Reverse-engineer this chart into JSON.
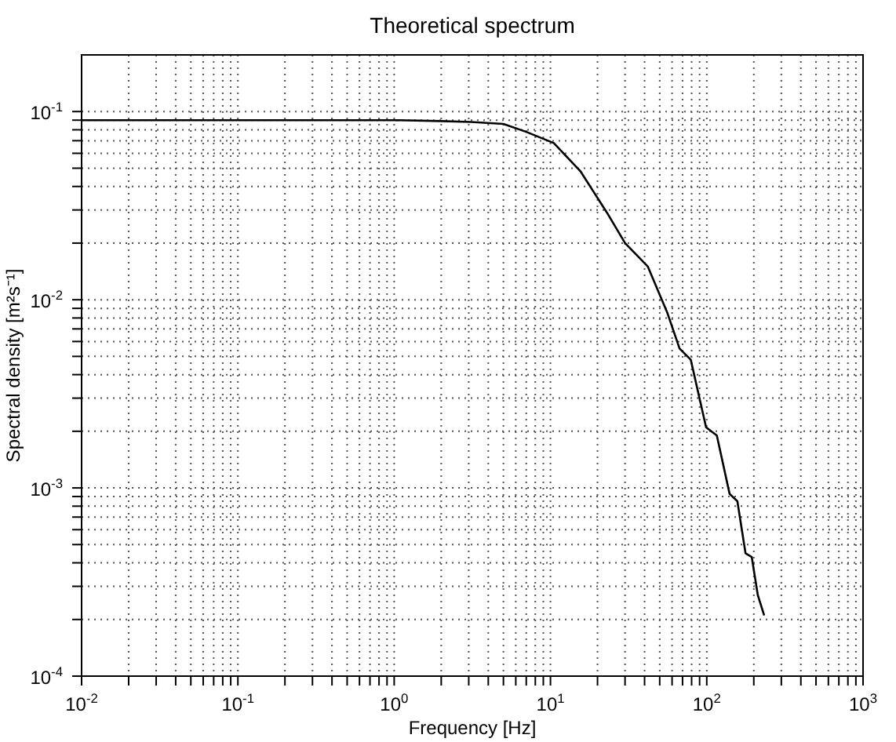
{
  "chart_data": {
    "type": "line",
    "title": "Theoretical spectrum",
    "xlabel": "Frequency  [Hz]",
    "ylabel": "Spectral density  [m²s⁻¹]",
    "log": "xy",
    "grid": true,
    "marker": "none",
    "line_style": "solid",
    "xlim": [
      0.01,
      1000
    ],
    "ylim": [
      0.0001,
      0.2
    ],
    "xticks": [
      {
        "value": 0.01,
        "label": "10$^{-2}$"
      },
      {
        "value": 0.02,
        "label": null
      },
      {
        "value": 0.03,
        "label": null
      },
      {
        "value": 0.04,
        "label": null
      },
      {
        "value": 0.05,
        "label": null
      },
      {
        "value": 0.06,
        "label": null
      },
      {
        "value": 0.07,
        "label": null
      },
      {
        "value": 0.08,
        "label": null
      },
      {
        "value": 0.09,
        "label": null
      },
      {
        "value": 0.1,
        "label": "10$^{-1}$"
      },
      {
        "value": 0.2,
        "label": null
      },
      {
        "value": 0.3,
        "label": null
      },
      {
        "value": 0.4,
        "label": null
      },
      {
        "value": 0.5,
        "label": null
      },
      {
        "value": 0.6,
        "label": null
      },
      {
        "value": 0.7,
        "label": null
      },
      {
        "value": 0.8,
        "label": null
      },
      {
        "value": 0.9,
        "label": null
      },
      {
        "value": 1,
        "label": "10$^{0}$"
      },
      {
        "value": 2,
        "label": null
      },
      {
        "value": 3,
        "label": null
      },
      {
        "value": 4,
        "label": null
      },
      {
        "value": 5,
        "label": null
      },
      {
        "value": 6,
        "label": null
      },
      {
        "value": 7,
        "label": null
      },
      {
        "value": 8,
        "label": null
      },
      {
        "value": 9,
        "label": null
      },
      {
        "value": 10,
        "label": "10$^{1}$"
      },
      {
        "value": 20,
        "label": null
      },
      {
        "value": 30,
        "label": null
      },
      {
        "value": 40,
        "label": null
      },
      {
        "value": 50,
        "label": null
      },
      {
        "value": 60,
        "label": null
      },
      {
        "value": 70,
        "label": null
      },
      {
        "value": 80,
        "label": null
      },
      {
        "value": 90,
        "label": null
      },
      {
        "value": 100,
        "label": "10$^{2}$"
      },
      {
        "value": 200,
        "label": null
      },
      {
        "value": 300,
        "label": null
      },
      {
        "value": 400,
        "label": null
      },
      {
        "value": 500,
        "label": null
      },
      {
        "value": 600,
        "label": null
      },
      {
        "value": 700,
        "label": null
      },
      {
        "value": 800,
        "label": null
      },
      {
        "value": 900,
        "label": null
      },
      {
        "value": 1000,
        "label": "10$^{3}$"
      }
    ],
    "yticks": [
      {
        "value": 0.0001,
        "label": "10$^{-4}$"
      },
      {
        "value": 0.0002,
        "label": null
      },
      {
        "value": 0.0003,
        "label": null
      },
      {
        "value": 0.0004,
        "label": null
      },
      {
        "value": 0.0005,
        "label": null
      },
      {
        "value": 0.0006,
        "label": null
      },
      {
        "value": 0.0007,
        "label": null
      },
      {
        "value": 0.0008,
        "label": null
      },
      {
        "value": 0.0009,
        "label": null
      },
      {
        "value": 0.001,
        "label": "10$^{-3}$"
      },
      {
        "value": 0.002,
        "label": null
      },
      {
        "value": 0.003,
        "label": null
      },
      {
        "value": 0.004,
        "label": null
      },
      {
        "value": 0.005,
        "label": null
      },
      {
        "value": 0.006,
        "label": null
      },
      {
        "value": 0.007,
        "label": null
      },
      {
        "value": 0.008,
        "label": null
      },
      {
        "value": 0.009,
        "label": null
      },
      {
        "value": 0.01,
        "label": "10$^{-2}$"
      },
      {
        "value": 0.02,
        "label": null
      },
      {
        "value": 0.03,
        "label": null
      },
      {
        "value": 0.04,
        "label": null
      },
      {
        "value": 0.05,
        "label": null
      },
      {
        "value": 0.06,
        "label": null
      },
      {
        "value": 0.07,
        "label": null
      },
      {
        "value": 0.08,
        "label": null
      },
      {
        "value": 0.09,
        "label": null
      },
      {
        "value": 0.1,
        "label": "10$^{-1}$"
      }
    ],
    "series": [
      {
        "color": "#000000",
        "x": [
          0.01,
          0.1,
          1,
          2,
          3.1,
          5,
          7,
          10.5,
          15.6,
          23,
          30,
          42,
          56,
          67,
          79,
          99,
          116,
          140,
          157,
          177,
          194,
          212,
          233
        ],
        "values": [
          0.09,
          0.09,
          0.09,
          0.089,
          0.088,
          0.086,
          0.078,
          0.068,
          0.048,
          0.029,
          0.02,
          0.015,
          0.0085,
          0.0055,
          0.0048,
          0.0021,
          0.0019,
          0.00093,
          0.00085,
          0.00045,
          0.00043,
          0.00027,
          0.00021
        ]
      }
    ]
  }
}
